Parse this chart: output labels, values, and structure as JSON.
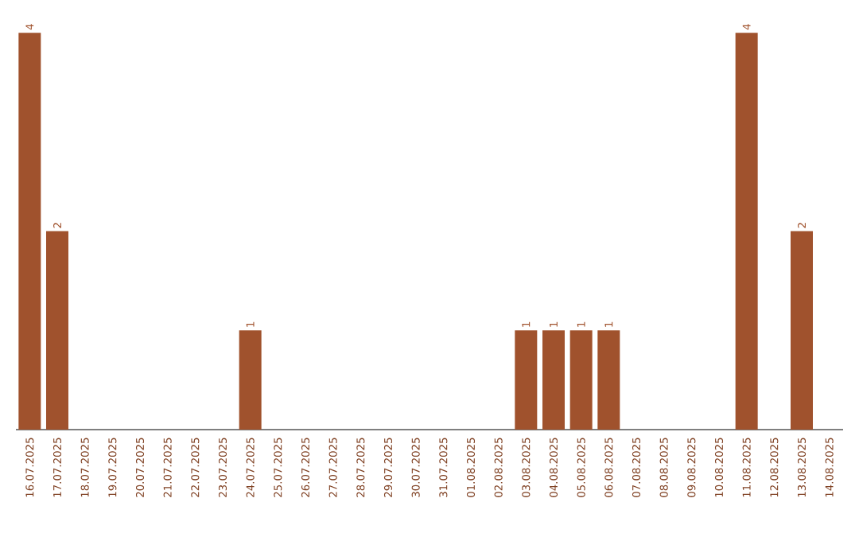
{
  "chart_data": {
    "type": "bar",
    "categories": [
      "16.07.2025",
      "17.07.2025",
      "18.07.2025",
      "19.07.2025",
      "20.07.2025",
      "21.07.2025",
      "22.07.2025",
      "23.07.2025",
      "24.07.2025",
      "25.07.2025",
      "26.07.2025",
      "27.07.2025",
      "28.07.2025",
      "29.07.2025",
      "30.07.2025",
      "31.07.2025",
      "01.08.2025",
      "02.08.2025",
      "03.08.2025",
      "04.08.2025",
      "05.08.2025",
      "06.08.2025",
      "07.08.2025",
      "08.08.2025",
      "09.08.2025",
      "10.08.2025",
      "11.08.2025",
      "12.08.2025",
      "13.08.2025",
      "14.08.2025"
    ],
    "values": [
      4,
      2,
      0,
      0,
      0,
      0,
      0,
      0,
      1,
      0,
      0,
      0,
      0,
      0,
      0,
      0,
      0,
      0,
      1,
      1,
      1,
      1,
      0,
      0,
      0,
      0,
      4,
      0,
      2,
      0
    ],
    "value_labels": [
      "4",
      "2",
      null,
      null,
      null,
      null,
      null,
      null,
      "1",
      null,
      null,
      null,
      null,
      null,
      null,
      null,
      null,
      null,
      "1",
      "1",
      "1",
      "1",
      null,
      null,
      null,
      null,
      "4",
      null,
      "2",
      null
    ],
    "color": "#a0522d"
  }
}
